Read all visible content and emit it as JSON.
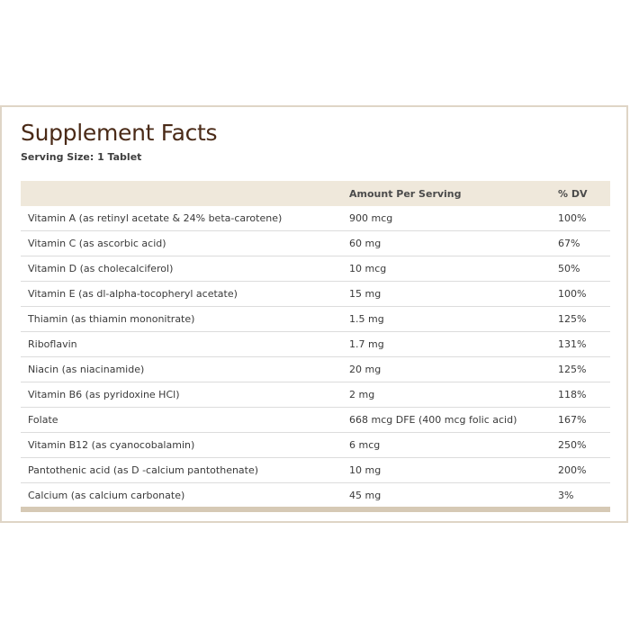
{
  "title": "Supplement Facts",
  "serving_size": "Serving Size: 1 Tablet",
  "table": {
    "headers": [
      "",
      "Amount Per Serving",
      "% DV"
    ],
    "rows": [
      {
        "name": "Vitamin A (as retinyl acetate & 24% beta-carotene)",
        "amount": "900 mcg",
        "dv": "100%"
      },
      {
        "name": "Vitamin C (as ascorbic acid)",
        "amount": "60 mg",
        "dv": "67%"
      },
      {
        "name": "Vitamin D (as cholecalciferol)",
        "amount": "10 mcg",
        "dv": "50%"
      },
      {
        "name": "Vitamin E (as dl-alpha-tocopheryl acetate)",
        "amount": "15 mg",
        "dv": "100%"
      },
      {
        "name": "Thiamin (as thiamin mononitrate)",
        "amount": "1.5 mg",
        "dv": "125%"
      },
      {
        "name": "Riboflavin",
        "amount": "1.7 mg",
        "dv": "131%"
      },
      {
        "name": "Niacin (as niacinamide)",
        "amount": "20 mg",
        "dv": "125%"
      },
      {
        "name": "Vitamin B6 (as pyridoxine HCl)",
        "amount": "2 mg",
        "dv": "118%"
      },
      {
        "name": "Folate",
        "amount": "668 mcg DFE (400 mcg folic acid)",
        "dv": "167%"
      },
      {
        "name": "Vitamin B12 (as cyanocobalamin)",
        "amount": "6 mcg",
        "dv": "250%"
      },
      {
        "name": "Pantothenic acid (as D -calcium pantothenate)",
        "amount": "10 mg",
        "dv": "200%"
      },
      {
        "name": "Calcium (as calcium carbonate)",
        "amount": "45 mg",
        "dv": "3%"
      }
    ]
  },
  "colors": {
    "title": "#4a2a17",
    "header_background": "#efe8db",
    "panel_border": "#dfd5c6",
    "bottom_bar": "#d6c9b5"
  }
}
